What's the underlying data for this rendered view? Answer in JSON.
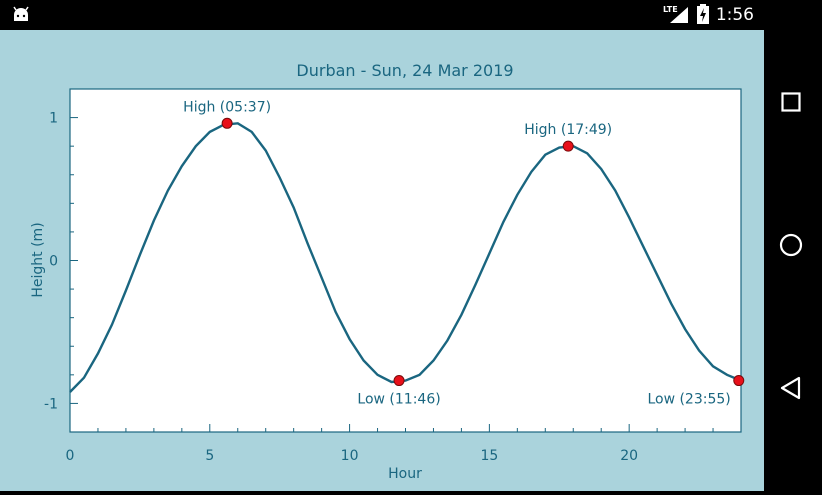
{
  "status_bar": {
    "time": "1:56",
    "network_label": "LTE",
    "icons": [
      "android-icon",
      "lte-icon",
      "signal-icon",
      "battery-charging-icon"
    ]
  },
  "nav_bar": {
    "icons": [
      "recents-square-icon",
      "home-circle-icon",
      "back-triangle-icon"
    ]
  },
  "colors": {
    "background": "#aad3dc",
    "line": "#1a6680",
    "text": "#1a6680",
    "marker": "#e8101a"
  },
  "chart_data": {
    "type": "line",
    "title": "Durban - Sun, 24 Mar 2019",
    "xlabel": "Hour",
    "ylabel": "Height (m)",
    "xlim": [
      0,
      24
    ],
    "ylim": [
      -1.2,
      1.2
    ],
    "x_ticks": [
      0,
      5,
      10,
      15,
      20
    ],
    "y_ticks": [
      -1,
      0,
      1
    ],
    "grid": false,
    "series": [
      {
        "x": [
          0,
          0.5,
          1,
          1.5,
          2,
          2.5,
          3,
          3.5,
          4,
          4.5,
          5,
          5.5,
          6,
          6.5,
          7,
          7.5,
          8,
          8.5,
          9,
          9.5,
          10,
          10.5,
          11,
          11.5,
          12,
          12.5,
          13,
          13.5,
          14,
          14.5,
          15,
          15.5,
          16,
          16.5,
          17,
          17.5,
          18,
          18.5,
          19,
          19.5,
          20,
          20.5,
          21,
          21.5,
          22,
          22.5,
          23,
          23.5,
          24
        ],
        "y": [
          -0.92,
          -0.82,
          -0.65,
          -0.45,
          -0.21,
          0.04,
          0.28,
          0.49,
          0.66,
          0.8,
          0.9,
          0.95,
          0.96,
          0.9,
          0.77,
          0.58,
          0.37,
          0.12,
          -0.12,
          -0.36,
          -0.55,
          -0.7,
          -0.8,
          -0.85,
          -0.84,
          -0.8,
          -0.7,
          -0.56,
          -0.38,
          -0.17,
          0.05,
          0.27,
          0.46,
          0.62,
          0.74,
          0.79,
          0.8,
          0.75,
          0.64,
          0.49,
          0.3,
          0.1,
          -0.1,
          -0.3,
          -0.48,
          -0.63,
          -0.74,
          -0.8,
          -0.84
        ]
      }
    ],
    "annotations": [
      {
        "label": "High (05:37)",
        "x": 5.62,
        "y": 0.96,
        "position": "above"
      },
      {
        "label": "Low (11:46)",
        "x": 11.77,
        "y": -0.84,
        "position": "below"
      },
      {
        "label": "High (17:49)",
        "x": 17.82,
        "y": 0.8,
        "position": "above"
      },
      {
        "label": "Low (23:55)",
        "x": 23.92,
        "y": -0.84,
        "position": "below-left"
      }
    ]
  }
}
